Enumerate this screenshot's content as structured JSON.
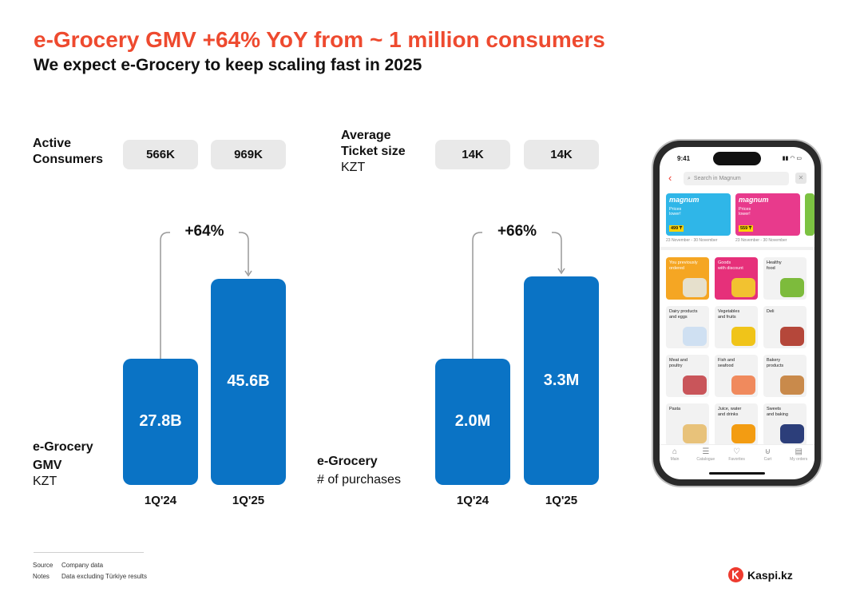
{
  "header": {
    "title": "e-Grocery GMV +64% YoY from ~ 1 million consumers",
    "subtitle": "We expect e-Grocery to keep scaling fast in 2025"
  },
  "colors": {
    "accent": "#ee4a2f",
    "bar": "#0a73c5",
    "pill": "#e9e9e9"
  },
  "left": {
    "kpi_label_line1": "Active",
    "kpi_label_line2": "Consumers",
    "kpi_values": [
      "566K",
      "969K"
    ],
    "chart_label_line1": "e-Grocery",
    "chart_label_line2": "GMV",
    "chart_unit": "KZT",
    "growth": "+64%"
  },
  "right": {
    "kpi_label_line1": "Average",
    "kpi_label_line2": "Ticket size",
    "kpi_unit": "KZT",
    "kpi_values": [
      "14K",
      "14K"
    ],
    "chart_label_line1": "e-Grocery",
    "chart_unit": "# of purchases",
    "growth": "+66%"
  },
  "chart_data": [
    {
      "type": "bar",
      "categories": [
        "1Q'24",
        "1Q'25"
      ],
      "values": [
        27.8,
        45.6
      ],
      "value_labels": [
        "27.8B",
        "45.6B"
      ],
      "annotation": "+64%",
      "ylim": [
        0,
        60
      ]
    },
    {
      "type": "bar",
      "categories": [
        "1Q'24",
        "1Q'25"
      ],
      "values": [
        2.0,
        3.3
      ],
      "value_labels": [
        "2.0M",
        "3.3M"
      ],
      "annotation": "+66%",
      "ylim": [
        0,
        4.3
      ]
    }
  ],
  "footer": {
    "source_label": "Source",
    "source_value": "Company data",
    "notes_label": "Notes",
    "notes_value": "Data excluding Türkiye results",
    "brand": "Kaspi.kz"
  },
  "phone": {
    "time": "9:41",
    "search_placeholder": "Search in Magnum",
    "promos": [
      {
        "brand": "magnum",
        "text_line1": "Prices",
        "text_line2": "lower!",
        "price": "499 ₸",
        "dates": "23 November - 30 November",
        "color": "#2fb6e8"
      },
      {
        "brand": "magnum",
        "text_line1": "Prices",
        "text_line2": "lower!",
        "price": "559 ₸",
        "dates": "23 November - 30 November",
        "color": "#e83a8c"
      }
    ],
    "tiles": [
      {
        "line1": "You previously",
        "line2": "ordered",
        "bg": "#f5a623",
        "fg": "#ffffff",
        "pic": "#e6e0cc"
      },
      {
        "line1": "Goods",
        "line2": "with discount",
        "bg": "#e6307a",
        "fg": "#ffffff",
        "pic": "#f2c230"
      },
      {
        "line1": "Healthy",
        "line2": "food",
        "bg": "#f2f2f2",
        "fg": "#222222",
        "pic": "#7dbb3c"
      },
      {
        "line1": "Dairy products",
        "line2": "and eggs",
        "bg": "#f2f2f2",
        "fg": "#222222",
        "pic": "#cfe0f2"
      },
      {
        "line1": "Vegetables",
        "line2": "and fruits",
        "bg": "#f2f2f2",
        "fg": "#222222",
        "pic": "#f0c419"
      },
      {
        "line1": "Deli",
        "line2": "",
        "bg": "#f2f2f2",
        "fg": "#222222",
        "pic": "#b5473a"
      },
      {
        "line1": "Meat and",
        "line2": "poultry",
        "bg": "#f2f2f2",
        "fg": "#222222",
        "pic": "#c9555a"
      },
      {
        "line1": "Fish and",
        "line2": "seafood",
        "bg": "#f2f2f2",
        "fg": "#222222",
        "pic": "#f08a5d"
      },
      {
        "line1": "Bakery",
        "line2": "products",
        "bg": "#f2f2f2",
        "fg": "#222222",
        "pic": "#c98a4b"
      },
      {
        "line1": "Pasta",
        "line2": "",
        "bg": "#f2f2f2",
        "fg": "#222222",
        "pic": "#e8c27a"
      },
      {
        "line1": "Juice, water",
        "line2": "and drinks",
        "bg": "#f2f2f2",
        "fg": "#222222",
        "pic": "#f39c12"
      },
      {
        "line1": "Sweets",
        "line2": "and baking",
        "bg": "#f2f2f2",
        "fg": "#222222",
        "pic": "#2c3e7a"
      }
    ],
    "tabs": [
      {
        "label": "Main",
        "icon": "home-icon"
      },
      {
        "label": "Catalogue",
        "icon": "catalogue-icon"
      },
      {
        "label": "Favorites",
        "icon": "heart-icon"
      },
      {
        "label": "Cart",
        "icon": "cart-icon"
      },
      {
        "label": "My orders",
        "icon": "orders-icon"
      }
    ]
  }
}
